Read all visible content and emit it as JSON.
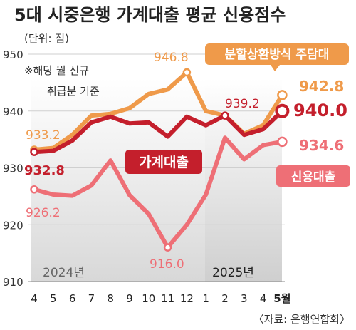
{
  "chart_data": {
    "type": "line",
    "title": "5대 시중은행 가계대출 평균 신용점수",
    "unit": "(단위: 점)",
    "note_lines": [
      "※해당 월 신규",
      "취급분 기준"
    ],
    "source": "〈자료: 은행연합회〉",
    "year_labels": [
      "2024년",
      "2025년"
    ],
    "x": [
      "4",
      "5",
      "6",
      "7",
      "8",
      "9",
      "10",
      "11",
      "12",
      "1",
      "2",
      "3",
      "4",
      "5월"
    ],
    "ylim": [
      910,
      950
    ],
    "yticks": [
      "910",
      "920",
      "930",
      "940",
      "950"
    ],
    "grid": true,
    "series": [
      {
        "name": "분할상환방식 주담대",
        "color": "#ef9a4a",
        "values": [
          933.2,
          933.5,
          935.8,
          939.2,
          939.5,
          940.5,
          943.0,
          943.8,
          946.8,
          940.0,
          939.2,
          936.0,
          937.5,
          942.8
        ],
        "labels": [
          {
            "i": 0,
            "text": "933.2"
          },
          {
            "i": 8,
            "text": "946.8"
          },
          {
            "i": 13,
            "text": "942.8"
          }
        ]
      },
      {
        "name": "가계대출",
        "color": "#c41f2c",
        "values": [
          932.8,
          933.0,
          934.8,
          938.0,
          939.0,
          937.8,
          938.0,
          935.5,
          939.0,
          937.5,
          939.2,
          935.8,
          936.8,
          940.0
        ],
        "labels": [
          {
            "i": 0,
            "text": "932.8"
          },
          {
            "i": 10,
            "text": "939.2"
          },
          {
            "i": 13,
            "text": "940.0"
          }
        ]
      },
      {
        "name": "신용대출",
        "color": "#ee6f76",
        "values": [
          926.2,
          925.3,
          925.1,
          926.9,
          931.3,
          925.2,
          921.9,
          916.0,
          920.0,
          925.3,
          935.3,
          931.5,
          934.0,
          934.6
        ],
        "labels": [
          {
            "i": 0,
            "text": "926.2"
          },
          {
            "i": 7,
            "text": "916.0"
          },
          {
            "i": 13,
            "text": "934.6"
          }
        ]
      }
    ]
  }
}
